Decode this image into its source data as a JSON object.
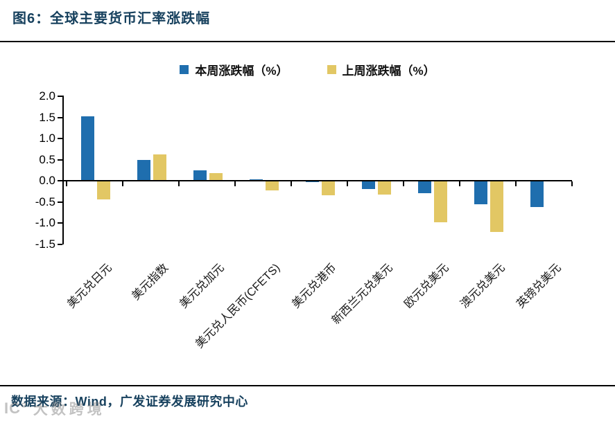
{
  "title": "图6：全球主要货币汇率涨跌幅",
  "legend": {
    "this_week_label": "本周涨跌幅（%）",
    "last_week_label": "上周涨跌幅（%）"
  },
  "footer": {
    "source_text": "数据来源：Wind，广发证券发展研究中心"
  },
  "watermark": {
    "logo": "IC°",
    "text": "大数跨境"
  },
  "colors": {
    "this_week": "#1F6EAE",
    "last_week": "#E2C764",
    "title_text": "#17415E",
    "axis": "#000000"
  },
  "chart_data": {
    "type": "bar",
    "title": "全球主要货币汇率涨跌幅",
    "categories": [
      "美元兑日元",
      "美元指数",
      "美元兑加元",
      "美元兑人民币(CFETS)",
      "美元兑港币",
      "新西兰元兑美元",
      "欧元兑美元",
      "澳元兑美元",
      "英镑兑美元"
    ],
    "series": [
      {
        "name": "本周涨跌幅（%）",
        "color": "#1F6EAE",
        "values": [
          1.53,
          0.5,
          0.25,
          0.03,
          -0.03,
          -0.19,
          -0.3,
          -0.55,
          -0.62
        ]
      },
      {
        "name": "上周涨跌幅（%）",
        "color": "#E2C764",
        "values": [
          -0.45,
          0.62,
          0.18,
          -0.23,
          -0.34,
          -0.33,
          -0.99,
          -1.21,
          0
        ]
      }
    ],
    "xlabel": "",
    "ylabel": "",
    "ylim": [
      -1.5,
      2.0
    ],
    "ytick_labels": [
      "2.0",
      "1.5",
      "1.0",
      "0.5",
      "0.0",
      "-0.5",
      "-1.0",
      "-1.5"
    ],
    "grid": false,
    "legend_position": "top"
  }
}
